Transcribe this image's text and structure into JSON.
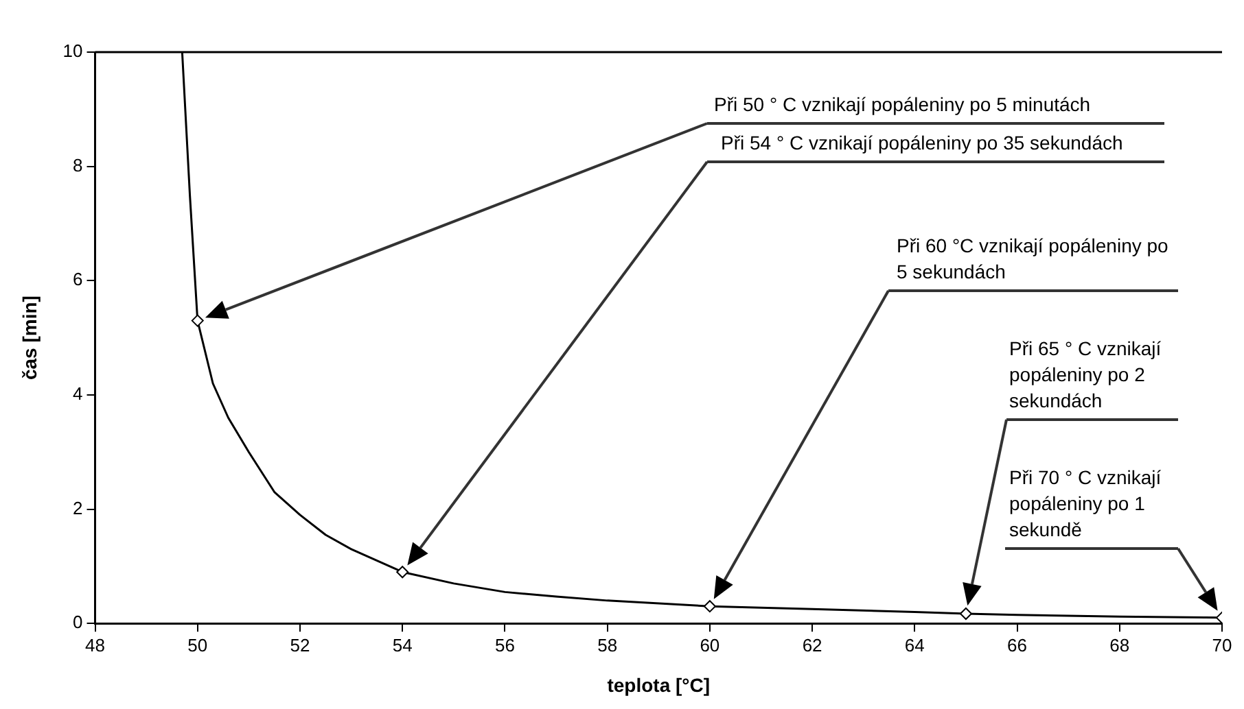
{
  "chart_data": {
    "type": "line",
    "xlabel": "teplota [°C]",
    "ylabel": "čas [min]",
    "xlim": [
      48,
      70
    ],
    "xticks": [
      48,
      50,
      52,
      54,
      56,
      58,
      60,
      62,
      64,
      66,
      68,
      70
    ],
    "ylim": [
      0,
      10
    ],
    "yticks": [
      0,
      2,
      4,
      6,
      8,
      10
    ],
    "grid": false,
    "legend": false,
    "series": [
      {
        "type": "line",
        "color": "#000000",
        "marker": "none",
        "x": [
          49.7,
          49.85,
          50,
          50.3,
          50.6,
          51,
          51.5,
          52,
          52.5,
          53,
          54,
          55,
          56,
          57,
          58,
          60,
          62,
          64,
          65,
          66,
          68,
          70
        ],
        "values": [
          10,
          7.5,
          5.3,
          4.2,
          3.6,
          3.0,
          2.3,
          1.9,
          1.55,
          1.3,
          0.9,
          0.7,
          0.55,
          0.47,
          0.4,
          0.3,
          0.25,
          0.2,
          0.17,
          0.15,
          0.12,
          0.1
        ]
      },
      {
        "type": "scatter",
        "color": "#000000",
        "marker": "diamond",
        "x": [
          50,
          54,
          60,
          65,
          70
        ],
        "values": [
          5.3,
          0.9,
          0.3,
          0.17,
          0.1
        ]
      }
    ],
    "annotations": [
      "Při 50 ° C vznikají popáleniny po 5 minutách",
      "Při 54 ° C vznikají popáleniny po 35 sekundách",
      "Při 60 °C vznikají popáleniny po 5 sekundách",
      "Při 65 ° C vznikají popáleniny po 2 sekundách",
      "Při 70 ° C vznikají popáleniny po 1 sekundě"
    ]
  }
}
